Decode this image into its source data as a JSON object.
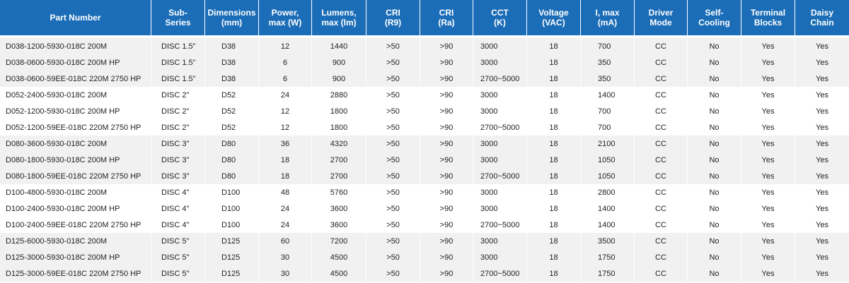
{
  "table": {
    "header": [
      "Part Number",
      "Sub-\nSeries",
      "Dimensions\n(mm)",
      "Power,\nmax (W)",
      "Lumens,\nmax (lm)",
      "CRI\n(R9)",
      "CRI\n(Ra)",
      "CCT\n(K)",
      "Voltage\n(VAC)",
      "I, max\n(mA)",
      "Driver\nMode",
      "Self-\nCooling",
      "Terminal\nBlocks",
      "Daisy\nChain"
    ],
    "rows": [
      [
        "D038-1200-5930-018C 200M",
        "DISC 1.5\"",
        "D38",
        "12",
        "1440",
        ">50",
        ">90",
        "3000",
        "18",
        "700",
        "CC",
        "No",
        "Yes",
        "Yes"
      ],
      [
        "D038-0600-5930-018C 200M HP",
        "DISC 1.5\"",
        "D38",
        "6",
        "900",
        ">50",
        ">90",
        "3000",
        "18",
        "350",
        "CC",
        "No",
        "Yes",
        "Yes"
      ],
      [
        "D038-0600-59EE-018C 220M 2750 HP",
        "DISC 1.5\"",
        "D38",
        "6",
        "900",
        ">50",
        ">90",
        "2700~5000",
        "18",
        "350",
        "CC",
        "No",
        "Yes",
        "Yes"
      ],
      [
        "D052-2400-5930-018C 200M",
        "DISC 2\"",
        "D52",
        "24",
        "2880",
        ">50",
        ">90",
        "3000",
        "18",
        "1400",
        "CC",
        "No",
        "Yes",
        "Yes"
      ],
      [
        "D052-1200-5930-018C 200M HP",
        "DISC 2\"",
        "D52",
        "12",
        "1800",
        ">50",
        ">90",
        "3000",
        "18",
        "700",
        "CC",
        "No",
        "Yes",
        "Yes"
      ],
      [
        "D052-1200-59EE-018C 220M 2750 HP",
        "DISC 2\"",
        "D52",
        "12",
        "1800",
        ">50",
        ">90",
        "2700~5000",
        "18",
        "700",
        "CC",
        "No",
        "Yes",
        "Yes"
      ],
      [
        "D080-3600-5930-018C 200M",
        "DISC 3\"",
        "D80",
        "36",
        "4320",
        ">50",
        ">90",
        "3000",
        "18",
        "2100",
        "CC",
        "No",
        "Yes",
        "Yes"
      ],
      [
        "D080-1800-5930-018C 200M HP",
        "DISC 3\"",
        "D80",
        "18",
        "2700",
        ">50",
        ">90",
        "3000",
        "18",
        "1050",
        "CC",
        "No",
        "Yes",
        "Yes"
      ],
      [
        "D080-1800-59EE-018C 220M 2750 HP",
        "DISC 3\"",
        "D80",
        "18",
        "2700",
        ">50",
        ">90",
        "2700~5000",
        "18",
        "1050",
        "CC",
        "No",
        "Yes",
        "Yes"
      ],
      [
        "D100-4800-5930-018C 200M",
        "DISC 4\"",
        "D100",
        "48",
        "5760",
        ">50",
        ">90",
        "3000",
        "18",
        "2800",
        "CC",
        "No",
        "Yes",
        "Yes"
      ],
      [
        "D100-2400-5930-018C 200M HP",
        "DISC 4\"",
        "D100",
        "24",
        "3600",
        ">50",
        ">90",
        "3000",
        "18",
        "1400",
        "CC",
        "No",
        "Yes",
        "Yes"
      ],
      [
        "D100-2400-59EE-018C 220M 2750 HP",
        "DISC 4\"",
        "D100",
        "24",
        "3600",
        ">50",
        ">90",
        "2700~5000",
        "18",
        "1400",
        "CC",
        "No",
        "Yes",
        "Yes"
      ],
      [
        "D125-6000-5930-018C 200M",
        "DISC 5\"",
        "D125",
        "60",
        "7200",
        ">50",
        ">90",
        "3000",
        "18",
        "3500",
        "CC",
        "No",
        "Yes",
        "Yes"
      ],
      [
        "D125-3000-5930-018C 200M HP",
        "DISC 5\"",
        "D125",
        "30",
        "4500",
        ">50",
        ">90",
        "3000",
        "18",
        "1750",
        "CC",
        "No",
        "Yes",
        "Yes"
      ],
      [
        "D125-3000-59EE-018C 220M 2750 HP",
        "DISC 5\"",
        "D125",
        "30",
        "4500",
        ">50",
        ">90",
        "2700~5000",
        "18",
        "1750",
        "CC",
        "No",
        "Yes",
        "Yes"
      ]
    ]
  }
}
